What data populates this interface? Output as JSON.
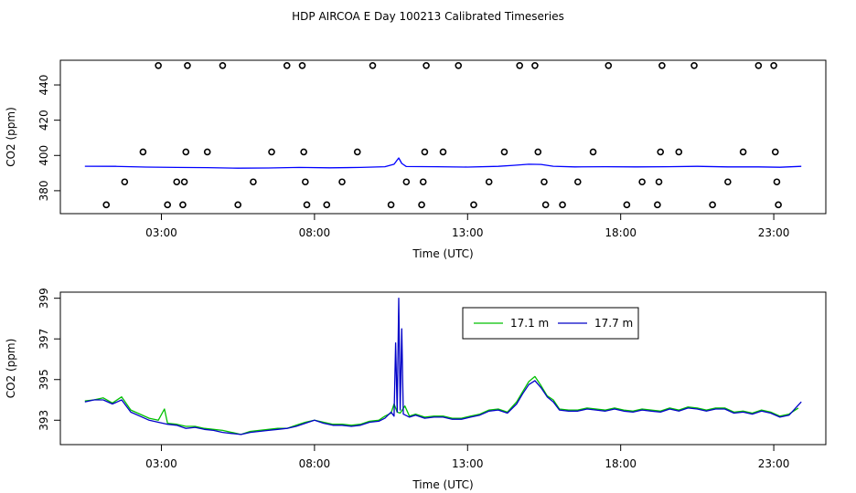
{
  "title": "HDP AIRCOA E  Day 100213  Calibrated Timeseries",
  "chart_data": [
    {
      "type": "scatter",
      "xlabel": "Time (UTC)",
      "ylabel": "CO2 (ppm)",
      "xlim": [
        -0.3,
        24.7
      ],
      "ylim": [
        367,
        454
      ],
      "x_ticks": [
        3,
        8,
        13,
        18,
        23
      ],
      "x_tick_labels": [
        "03:00",
        "08:00",
        "13:00",
        "18:00",
        "23:00"
      ],
      "y_ticks": [
        380,
        400,
        420,
        440
      ],
      "y_tick_labels": [
        "380",
        "400",
        "420",
        "440"
      ],
      "grid": false,
      "legend": false,
      "series": [
        {
          "color": "#0000ff",
          "kind": "line",
          "points": [
            [
              0.5,
              393.9
            ],
            [
              1.5,
              393.8
            ],
            [
              2.5,
              393.4
            ],
            [
              3.5,
              393.2
            ],
            [
              4.5,
              393.1
            ],
            [
              5.5,
              392.8
            ],
            [
              6.5,
              392.9
            ],
            [
              7.5,
              393.2
            ],
            [
              8.5,
              393.0
            ],
            [
              9.5,
              393.2
            ],
            [
              10.3,
              393.6
            ],
            [
              10.6,
              395.0
            ],
            [
              10.75,
              398.6
            ],
            [
              10.85,
              395.5
            ],
            [
              11.0,
              393.7
            ],
            [
              12.0,
              393.6
            ],
            [
              13.0,
              393.4
            ],
            [
              14.0,
              393.8
            ],
            [
              14.5,
              394.4
            ],
            [
              15.0,
              395.0
            ],
            [
              15.4,
              394.9
            ],
            [
              15.8,
              393.9
            ],
            [
              16.5,
              393.5
            ],
            [
              17.5,
              393.6
            ],
            [
              18.5,
              393.5
            ],
            [
              19.5,
              393.6
            ],
            [
              20.5,
              393.8
            ],
            [
              21.5,
              393.5
            ],
            [
              22.5,
              393.5
            ],
            [
              23.2,
              393.3
            ],
            [
              23.9,
              393.8
            ]
          ]
        },
        {
          "color": "#000000",
          "kind": "open-circles",
          "points": [
            [
              1.2,
              372
            ],
            [
              1.8,
              385
            ],
            [
              2.4,
              402
            ],
            [
              2.9,
              451
            ],
            [
              3.2,
              372
            ],
            [
              3.5,
              385
            ],
            [
              3.7,
              372
            ],
            [
              3.75,
              385
            ],
            [
              3.8,
              402
            ],
            [
              3.85,
              451
            ],
            [
              4.5,
              402
            ],
            [
              5.0,
              451
            ],
            [
              5.5,
              372
            ],
            [
              6.0,
              385
            ],
            [
              6.6,
              402
            ],
            [
              7.1,
              451
            ],
            [
              7.6,
              451
            ],
            [
              7.65,
              402
            ],
            [
              7.7,
              385
            ],
            [
              7.75,
              372
            ],
            [
              8.4,
              372
            ],
            [
              8.9,
              385
            ],
            [
              9.4,
              402
            ],
            [
              9.9,
              451
            ],
            [
              10.5,
              372
            ],
            [
              11.0,
              385
            ],
            [
              11.5,
              372
            ],
            [
              11.55,
              385
            ],
            [
              11.6,
              402
            ],
            [
              11.65,
              451
            ],
            [
              12.2,
              402
            ],
            [
              12.7,
              451
            ],
            [
              13.2,
              372
            ],
            [
              13.7,
              385
            ],
            [
              14.2,
              402
            ],
            [
              14.7,
              451
            ],
            [
              15.2,
              451
            ],
            [
              15.3,
              402
            ],
            [
              15.5,
              385
            ],
            [
              15.55,
              372
            ],
            [
              16.1,
              372
            ],
            [
              16.6,
              385
            ],
            [
              17.1,
              402
            ],
            [
              17.6,
              451
            ],
            [
              18.2,
              372
            ],
            [
              18.7,
              385
            ],
            [
              19.2,
              372
            ],
            [
              19.25,
              385
            ],
            [
              19.3,
              402
            ],
            [
              19.35,
              451
            ],
            [
              19.9,
              402
            ],
            [
              20.4,
              451
            ],
            [
              21.0,
              372
            ],
            [
              21.5,
              385
            ],
            [
              22.0,
              402
            ],
            [
              22.5,
              451
            ],
            [
              23.0,
              451
            ],
            [
              23.05,
              402
            ],
            [
              23.1,
              385
            ],
            [
              23.15,
              372
            ]
          ]
        }
      ]
    },
    {
      "type": "line",
      "xlabel": "Time (UTC)",
      "ylabel": "CO2 (ppm)",
      "xlim": [
        -0.3,
        24.7
      ],
      "ylim": [
        391.8,
        399.3
      ],
      "x_ticks": [
        3,
        8,
        13,
        18,
        23
      ],
      "x_tick_labels": [
        "03:00",
        "08:00",
        "13:00",
        "18:00",
        "23:00"
      ],
      "y_ticks": [
        393,
        395,
        397,
        399
      ],
      "y_tick_labels": [
        "393",
        "395",
        "397",
        "399"
      ],
      "grid": false,
      "legend": "top-center",
      "series": [
        {
          "name": "17.1 m",
          "color": "#00c000",
          "points": [
            [
              0.5,
              393.95
            ],
            [
              0.8,
              394.0
            ],
            [
              1.1,
              394.1
            ],
            [
              1.4,
              393.85
            ],
            [
              1.7,
              394.15
            ],
            [
              2.0,
              393.5
            ],
            [
              2.3,
              393.3
            ],
            [
              2.6,
              393.1
            ],
            [
              2.9,
              393.0
            ],
            [
              3.1,
              393.55
            ],
            [
              3.2,
              392.85
            ],
            [
              3.5,
              392.8
            ],
            [
              3.8,
              392.7
            ],
            [
              4.1,
              392.7
            ],
            [
              4.4,
              392.6
            ],
            [
              4.7,
              392.55
            ],
            [
              5.0,
              392.5
            ],
            [
              5.3,
              392.4
            ],
            [
              5.6,
              392.3
            ],
            [
              5.9,
              392.45
            ],
            [
              6.2,
              392.5
            ],
            [
              6.5,
              392.55
            ],
            [
              6.8,
              392.6
            ],
            [
              7.1,
              392.6
            ],
            [
              7.4,
              392.75
            ],
            [
              7.7,
              392.9
            ],
            [
              8.0,
              393.0
            ],
            [
              8.3,
              392.9
            ],
            [
              8.6,
              392.8
            ],
            [
              8.9,
              392.8
            ],
            [
              9.2,
              392.75
            ],
            [
              9.5,
              392.8
            ],
            [
              9.8,
              392.95
            ],
            [
              10.1,
              393.0
            ],
            [
              10.3,
              393.2
            ],
            [
              10.5,
              393.35
            ],
            [
              10.6,
              393.8
            ],
            [
              10.7,
              393.4
            ],
            [
              10.8,
              393.35
            ],
            [
              10.95,
              393.7
            ],
            [
              11.1,
              393.2
            ],
            [
              11.3,
              393.3
            ],
            [
              11.6,
              393.15
            ],
            [
              11.9,
              393.2
            ],
            [
              12.2,
              393.2
            ],
            [
              12.5,
              393.1
            ],
            [
              12.8,
              393.1
            ],
            [
              13.1,
              393.2
            ],
            [
              13.4,
              393.3
            ],
            [
              13.7,
              393.5
            ],
            [
              14.0,
              393.55
            ],
            [
              14.3,
              393.4
            ],
            [
              14.6,
              393.9
            ],
            [
              14.8,
              394.4
            ],
            [
              15.0,
              394.9
            ],
            [
              15.2,
              395.15
            ],
            [
              15.4,
              394.7
            ],
            [
              15.6,
              394.2
            ],
            [
              15.8,
              394.0
            ],
            [
              16.0,
              393.55
            ],
            [
              16.3,
              393.5
            ],
            [
              16.6,
              393.5
            ],
            [
              16.9,
              393.6
            ],
            [
              17.2,
              393.55
            ],
            [
              17.5,
              393.5
            ],
            [
              17.8,
              393.6
            ],
            [
              18.1,
              393.5
            ],
            [
              18.4,
              393.45
            ],
            [
              18.7,
              393.55
            ],
            [
              19.0,
              393.5
            ],
            [
              19.3,
              393.45
            ],
            [
              19.6,
              393.6
            ],
            [
              19.9,
              393.5
            ],
            [
              20.2,
              393.65
            ],
            [
              20.5,
              393.6
            ],
            [
              20.8,
              393.5
            ],
            [
              21.1,
              393.6
            ],
            [
              21.4,
              393.6
            ],
            [
              21.7,
              393.4
            ],
            [
              22.0,
              393.45
            ],
            [
              22.3,
              393.35
            ],
            [
              22.6,
              393.5
            ],
            [
              22.9,
              393.4
            ],
            [
              23.2,
              393.2
            ],
            [
              23.5,
              393.3
            ],
            [
              23.8,
              393.6
            ]
          ]
        },
        {
          "name": "17.7 m",
          "color": "#0000c8",
          "points": [
            [
              0.5,
              393.9
            ],
            [
              0.8,
              394.0
            ],
            [
              1.1,
              394.0
            ],
            [
              1.4,
              393.8
            ],
            [
              1.7,
              394.0
            ],
            [
              2.0,
              393.4
            ],
            [
              2.3,
              393.2
            ],
            [
              2.6,
              393.0
            ],
            [
              2.9,
              392.9
            ],
            [
              3.2,
              392.8
            ],
            [
              3.5,
              392.75
            ],
            [
              3.8,
              392.6
            ],
            [
              4.1,
              392.65
            ],
            [
              4.4,
              392.55
            ],
            [
              4.7,
              392.5
            ],
            [
              5.0,
              392.4
            ],
            [
              5.3,
              392.35
            ],
            [
              5.6,
              392.3
            ],
            [
              5.9,
              392.4
            ],
            [
              6.2,
              392.45
            ],
            [
              6.5,
              392.5
            ],
            [
              6.8,
              392.55
            ],
            [
              7.1,
              392.6
            ],
            [
              7.4,
              392.7
            ],
            [
              7.7,
              392.85
            ],
            [
              8.0,
              393.0
            ],
            [
              8.3,
              392.85
            ],
            [
              8.6,
              392.75
            ],
            [
              8.9,
              392.75
            ],
            [
              9.2,
              392.7
            ],
            [
              9.5,
              392.75
            ],
            [
              9.8,
              392.9
            ],
            [
              10.1,
              392.95
            ],
            [
              10.3,
              393.1
            ],
            [
              10.5,
              393.4
            ],
            [
              10.6,
              393.2
            ],
            [
              10.65,
              396.8
            ],
            [
              10.7,
              393.4
            ],
            [
              10.75,
              399.0
            ],
            [
              10.8,
              393.5
            ],
            [
              10.85,
              397.5
            ],
            [
              10.9,
              393.3
            ],
            [
              11.1,
              393.15
            ],
            [
              11.3,
              393.25
            ],
            [
              11.6,
              393.1
            ],
            [
              11.9,
              393.15
            ],
            [
              12.2,
              393.15
            ],
            [
              12.5,
              393.05
            ],
            [
              12.8,
              393.05
            ],
            [
              13.1,
              393.15
            ],
            [
              13.4,
              393.25
            ],
            [
              13.7,
              393.45
            ],
            [
              14.0,
              393.5
            ],
            [
              14.3,
              393.35
            ],
            [
              14.6,
              393.8
            ],
            [
              14.8,
              394.3
            ],
            [
              15.0,
              394.75
            ],
            [
              15.2,
              394.95
            ],
            [
              15.4,
              394.6
            ],
            [
              15.6,
              394.15
            ],
            [
              15.8,
              393.9
            ],
            [
              16.0,
              393.5
            ],
            [
              16.3,
              393.45
            ],
            [
              16.6,
              393.45
            ],
            [
              16.9,
              393.55
            ],
            [
              17.2,
              393.5
            ],
            [
              17.5,
              393.45
            ],
            [
              17.8,
              393.55
            ],
            [
              18.1,
              393.45
            ],
            [
              18.4,
              393.4
            ],
            [
              18.7,
              393.5
            ],
            [
              19.0,
              393.45
            ],
            [
              19.3,
              393.4
            ],
            [
              19.6,
              393.55
            ],
            [
              19.9,
              393.45
            ],
            [
              20.2,
              393.6
            ],
            [
              20.5,
              393.55
            ],
            [
              20.8,
              393.45
            ],
            [
              21.1,
              393.55
            ],
            [
              21.4,
              393.55
            ],
            [
              21.7,
              393.35
            ],
            [
              22.0,
              393.4
            ],
            [
              22.3,
              393.3
            ],
            [
              22.6,
              393.45
            ],
            [
              22.9,
              393.35
            ],
            [
              23.2,
              393.15
            ],
            [
              23.5,
              393.25
            ],
            [
              23.9,
              393.9
            ]
          ]
        }
      ]
    }
  ]
}
